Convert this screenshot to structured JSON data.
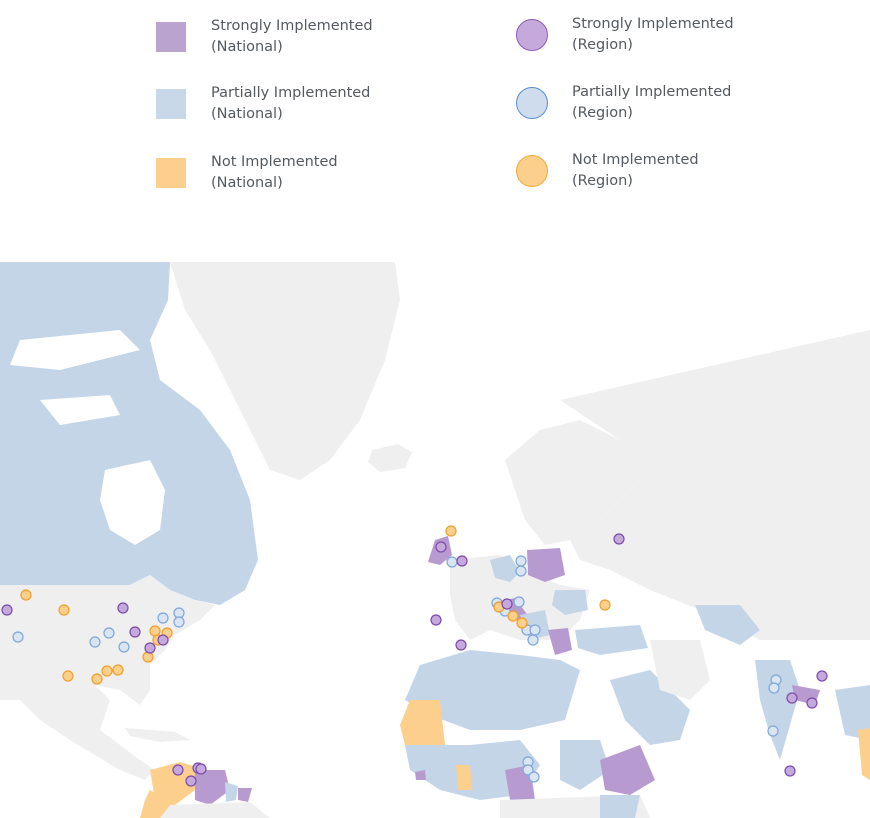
{
  "legend": {
    "national": [
      {
        "line1": "Strongly Implemented",
        "line2": "(National)",
        "color": "#bba3d0"
      },
      {
        "line1": "Partially Implemented",
        "line2": "(National)",
        "color": "#c9d8e8"
      },
      {
        "line1": "Not Implemented",
        "line2": "(National)",
        "color": "#fcd08c"
      }
    ],
    "region": [
      {
        "line1": "Strongly Implemented",
        "line2": "(Region)",
        "fill": "#c5a9dc",
        "stroke": "#8c5cb7"
      },
      {
        "line1": "Partially Implemented",
        "line2": "(Region)",
        "fill": "#cfdcee",
        "stroke": "#5a8ed1"
      },
      {
        "line1": "Not Implemented",
        "line2": "(Region)",
        "fill": "#fcd08c",
        "stroke": "#f2a93b"
      }
    ]
  },
  "map": {
    "colors": {
      "ocean": "#ffffff",
      "land_default": "#efefef",
      "strong_national": "#b79bd0",
      "partial_national": "#c4d5e8",
      "none_national": "#fcd08c",
      "strong_region_fill": "#c5a9dc",
      "strong_region_stroke": "#7d4aa8",
      "partial_region_fill": "#d9e5f3",
      "partial_region_stroke": "#7fa6d6",
      "none_region_fill": "#fcd08c",
      "none_region_stroke": "#ef9f2c"
    }
  }
}
